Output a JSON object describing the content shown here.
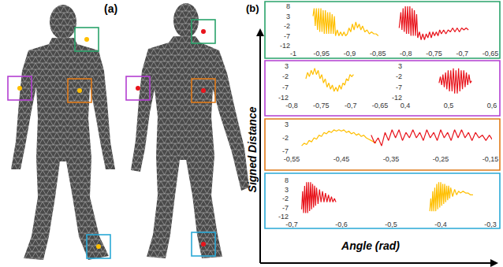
{
  "labels": {
    "a": "(a)",
    "b": "(b)",
    "y_axis": "Signed Distance",
    "x_axis": "Angle (rad)"
  },
  "chart_data": [
    {
      "type": "line",
      "grid": false,
      "xlim": [
        -1,
        -0.65
      ],
      "xticks": [
        -1,
        {
          "value": -0.95,
          "label": "-0,95"
        },
        {
          "value": -0.9,
          "label": "-0,9"
        },
        {
          "value": -0.85,
          "label": "-0,85"
        },
        {
          "value": -0.8,
          "label": "-0,8"
        },
        {
          "value": -0.75,
          "label": "-0,75"
        },
        {
          "value": -0.7,
          "label": "-0,7"
        },
        {
          "value": -0.65,
          "label": "-0,65"
        }
      ],
      "ylim": [
        -12,
        8
      ],
      "yticks": [
        8,
        3,
        -2,
        -7,
        -12
      ],
      "series": [
        {
          "color": "#ffbf00",
          "x": [
            -0.965,
            -0.963,
            -0.961,
            -0.959,
            -0.957,
            -0.955,
            -0.953,
            -0.951,
            -0.949,
            -0.947,
            -0.945,
            -0.943,
            -0.941,
            -0.939,
            -0.937,
            -0.935,
            -0.933,
            -0.931,
            -0.929,
            -0.927,
            -0.925,
            -0.922,
            -0.919,
            -0.916,
            -0.913,
            -0.91,
            -0.907,
            -0.904,
            -0.901,
            -0.898,
            -0.895,
            -0.892,
            -0.889,
            -0.886,
            -0.883,
            -0.88,
            -0.877,
            -0.873,
            -0.869,
            -0.865,
            -0.861,
            -0.857,
            -0.853,
            -0.849
          ],
          "values": [
            3,
            7,
            -2,
            7,
            -4,
            7,
            -5,
            7,
            -5,
            6,
            -6,
            6,
            -6,
            5,
            -6,
            5,
            -6,
            4,
            -6,
            3,
            -7,
            -4,
            -7,
            -5,
            -7,
            -5,
            -7,
            -6,
            -3,
            -5,
            -1,
            -4,
            0,
            -3,
            -1,
            -4,
            -2,
            -5,
            -4,
            -6,
            -5,
            -6,
            -6,
            -7
          ]
        },
        {
          "color": "#e8141c",
          "x": [
            -0.812,
            -0.809,
            -0.807,
            -0.805,
            -0.803,
            -0.801,
            -0.799,
            -0.797,
            -0.795,
            -0.793,
            -0.791,
            -0.789,
            -0.787,
            -0.785,
            -0.783,
            -0.781,
            -0.779,
            -0.776,
            -0.773,
            -0.77,
            -0.767,
            -0.764,
            -0.761,
            -0.758,
            -0.755,
            -0.752,
            -0.749,
            -0.746,
            -0.743,
            -0.74,
            -0.737,
            -0.733,
            -0.729,
            -0.725,
            -0.721,
            -0.717,
            -0.713,
            -0.709,
            -0.705,
            -0.701,
            -0.697,
            -0.693,
            -0.689
          ],
          "values": [
            -3,
            5,
            -4,
            7,
            -5,
            8,
            -6,
            8,
            -6,
            8,
            -7,
            7,
            -7,
            6,
            -7,
            4,
            -8,
            -5,
            -9,
            -6,
            -9,
            -6,
            -8,
            -5,
            -8,
            -5,
            -7,
            -5,
            -7,
            -4,
            -6,
            -4,
            -6,
            -4,
            -5,
            -3,
            -5,
            -3,
            -5,
            -3,
            -4,
            -3,
            -4
          ]
        }
      ]
    },
    {
      "type": "line",
      "grid": false,
      "xlim": [
        -0.8,
        -0.65
      ],
      "xticks": [
        {
          "value": -0.8,
          "label": "-0,8"
        },
        {
          "value": -0.75,
          "label": "-0,75"
        },
        {
          "value": -0.7,
          "label": "-0,7"
        },
        {
          "value": -0.65,
          "label": "-0,65"
        }
      ],
      "ylim": [
        -12,
        3
      ],
      "yticks": [
        3,
        -2,
        -7,
        -12
      ],
      "series": [
        {
          "color": "#ffbf00",
          "x": [
            -0.776,
            -0.773,
            -0.77,
            -0.767,
            -0.764,
            -0.761,
            -0.758,
            -0.755,
            -0.752,
            -0.749,
            -0.746,
            -0.743,
            -0.74,
            -0.737,
            -0.734,
            -0.731,
            -0.728,
            -0.725,
            -0.722,
            -0.719,
            -0.716,
            -0.713,
            -0.71,
            -0.707,
            -0.704,
            -0.701,
            -0.698,
            -0.695
          ],
          "values": [
            -3,
            0,
            -2,
            1,
            -1,
            2,
            -1,
            1,
            -3,
            -1,
            -5,
            -3,
            -7,
            -5,
            -8,
            -6,
            -9,
            -7,
            -9,
            -6,
            -8,
            -5,
            -6,
            -3,
            -4,
            -1,
            -2,
            -1
          ]
        }
      ]
    },
    {
      "type": "line",
      "grid": false,
      "xlim": [
        0.4,
        0.6
      ],
      "xticks": [
        {
          "value": 0.4,
          "label": "0,4"
        },
        {
          "value": 0.5,
          "label": "0,5"
        },
        {
          "value": 0.6,
          "label": "0,6"
        }
      ],
      "ylim": [
        -12,
        3
      ],
      "yticks": [
        3,
        -2,
        -7,
        -12
      ],
      "series": [
        {
          "color": "#e8141c",
          "x": [
            0.478,
            0.481,
            0.484,
            0.487,
            0.49,
            0.493,
            0.496,
            0.499,
            0.502,
            0.505,
            0.508,
            0.511,
            0.514,
            0.517,
            0.52,
            0.523,
            0.526,
            0.529,
            0.532,
            0.535,
            0.538,
            0.541,
            0.544,
            0.547,
            0.55,
            0.553
          ],
          "values": [
            -5,
            -2,
            -6,
            -1,
            -7,
            0,
            -8,
            1,
            -9,
            1,
            -9,
            2,
            -10,
            1,
            -10,
            2,
            -9,
            1,
            -8,
            1,
            -7,
            0,
            -6,
            -1,
            -5,
            -4
          ]
        }
      ]
    },
    {
      "type": "line",
      "grid": false,
      "xlim": [
        -0.55,
        -0.15
      ],
      "xticks": [
        {
          "value": -0.55,
          "label": "-0,55"
        },
        {
          "value": -0.45,
          "label": "-0,45"
        },
        {
          "value": -0.35,
          "label": "-0,35"
        },
        {
          "value": -0.25,
          "label": "-0,25"
        },
        {
          "value": -0.15,
          "label": "-0,15"
        }
      ],
      "ylim": [
        -7,
        3
      ],
      "yticks": [
        3,
        -2,
        -7
      ],
      "series": [
        {
          "color": "#ffbf00",
          "x": [
            -0.53,
            -0.525,
            -0.52,
            -0.515,
            -0.51,
            -0.505,
            -0.5,
            -0.495,
            -0.49,
            -0.485,
            -0.48,
            -0.475,
            -0.47,
            -0.465,
            -0.46,
            -0.455,
            -0.45,
            -0.445,
            -0.44,
            -0.435,
            -0.43,
            -0.425,
            -0.42,
            -0.415,
            -0.41,
            -0.405,
            -0.4,
            -0.395,
            -0.39,
            -0.385,
            -0.38
          ],
          "values": [
            -5,
            -4,
            -4.5,
            -3,
            -3.5,
            -2,
            -2.5,
            -1,
            -1.5,
            0,
            -0.5,
            0.5,
            0,
            1,
            0.5,
            1,
            0.5,
            1,
            0,
            0.5,
            -0.5,
            0,
            -1,
            -0.5,
            -1.5,
            -1,
            -2,
            -2.5,
            -3,
            -3.5,
            -4
          ]
        },
        {
          "color": "#e8141c",
          "x": [
            -0.39,
            -0.383,
            -0.376,
            -0.369,
            -0.362,
            -0.355,
            -0.348,
            -0.341,
            -0.334,
            -0.327,
            -0.32,
            -0.313,
            -0.306,
            -0.299,
            -0.292,
            -0.285,
            -0.278,
            -0.271,
            -0.264,
            -0.257,
            -0.25,
            -0.243,
            -0.236,
            -0.229,
            -0.222,
            -0.215,
            -0.208,
            -0.201,
            -0.194,
            -0.187,
            -0.18,
            -0.173,
            -0.166,
            -0.159,
            -0.152,
            -0.145,
            -0.138,
            -0.131
          ],
          "values": [
            -1,
            -4,
            -2,
            -5,
            0,
            -3,
            1,
            -2,
            1,
            -3,
            0,
            -2,
            1,
            -2,
            0,
            -3,
            1,
            -2,
            0,
            -3,
            1,
            -2,
            0,
            -3,
            1,
            -2,
            1,
            -2,
            0,
            -3,
            0,
            -2,
            -1,
            -3,
            -1,
            -3,
            -2,
            -3
          ]
        }
      ]
    },
    {
      "type": "line",
      "grid": false,
      "xlim": [
        -0.7,
        -0.3
      ],
      "xticks": [
        {
          "value": -0.7,
          "label": "-0,7"
        },
        {
          "value": -0.6,
          "label": "-0,6"
        },
        {
          "value": -0.5,
          "label": "-0,5"
        },
        {
          "value": -0.4,
          "label": "-0,4"
        },
        {
          "value": -0.3,
          "label": "-0,3"
        }
      ],
      "ylim": [
        -12,
        8
      ],
      "yticks": [
        8,
        3,
        -2,
        -7,
        -12
      ],
      "series": [
        {
          "color": "#e8141c",
          "x": [
            -0.68,
            -0.678,
            -0.676,
            -0.674,
            -0.672,
            -0.67,
            -0.668,
            -0.666,
            -0.664,
            -0.662,
            -0.66,
            -0.658,
            -0.656,
            -0.654,
            -0.652,
            -0.65,
            -0.647,
            -0.644,
            -0.641,
            -0.638,
            -0.635,
            -0.632,
            -0.629,
            -0.626,
            -0.623,
            -0.62,
            -0.617,
            -0.614,
            -0.611
          ],
          "values": [
            -8,
            2,
            -10,
            5,
            -10,
            7,
            -10,
            7,
            -9,
            7,
            -8,
            6,
            -7,
            5,
            -6,
            4,
            -5,
            3,
            -4,
            2,
            -4,
            1,
            -4,
            0,
            -4,
            -1,
            -4,
            -2,
            -4
          ]
        },
        {
          "color": "#ffbf00",
          "x": [
            -0.422,
            -0.42,
            -0.418,
            -0.416,
            -0.414,
            -0.412,
            -0.41,
            -0.408,
            -0.406,
            -0.404,
            -0.402,
            -0.4,
            -0.398,
            -0.396,
            -0.394,
            -0.392,
            -0.39,
            -0.388,
            -0.386,
            -0.384,
            -0.382,
            -0.38,
            -0.376,
            -0.372,
            -0.368,
            -0.364,
            -0.36,
            -0.355,
            -0.35,
            -0.345,
            -0.34,
            -0.335
          ],
          "values": [
            -9,
            -2,
            -9,
            2,
            -9,
            4,
            -9,
            6,
            -8,
            7,
            -7,
            7,
            -6,
            6,
            -5,
            6,
            -4,
            5,
            -3,
            5,
            -2,
            4,
            -1,
            3,
            0,
            2,
            1,
            2,
            1,
            1,
            0,
            0
          ]
        }
      ]
    }
  ]
}
